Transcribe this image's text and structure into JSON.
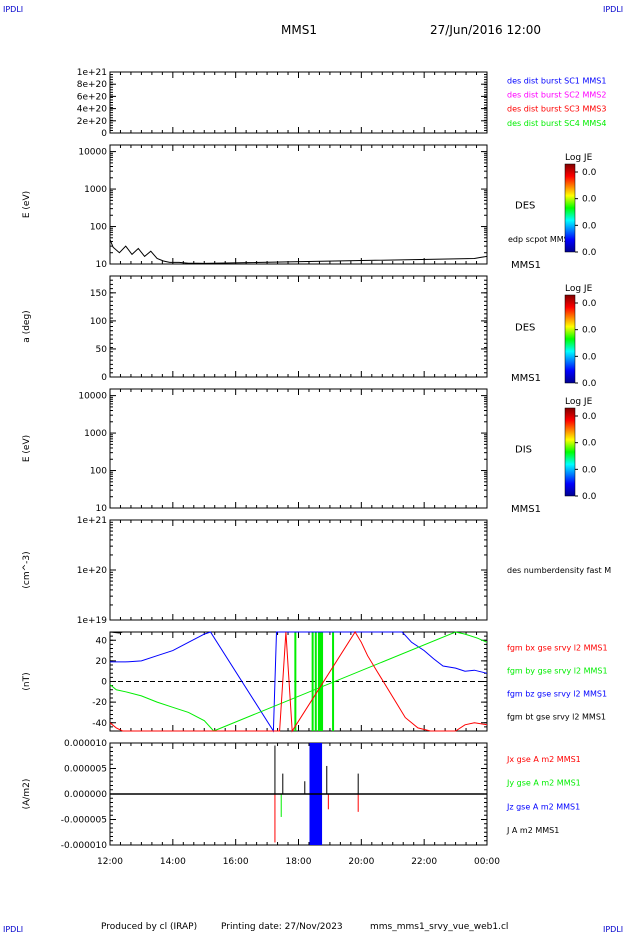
{
  "header": {
    "corner_label": "IPDLI",
    "spacecraft": "MMS1",
    "datetime": "27/Jun/2016 12:00"
  },
  "footer": {
    "produced_by": "Produced by cl (IRAP)",
    "printing_date": "Printing date: 27/Nov/2023",
    "filename": "mms_mms1_srvy_vue_web1.cl"
  },
  "colors": {
    "blue": "#0000ff",
    "magenta": "#ff00ff",
    "red": "#ff0000",
    "green": "#00ee00",
    "black": "#000000"
  },
  "chart_data": [
    {
      "type": "line",
      "id": "burst",
      "ylabel": "",
      "yticks": [
        "1e+21",
        "8e+20",
        "6e+20",
        "4e+20",
        "2e+20",
        "0"
      ],
      "ylim": [
        0,
        1e+21
      ],
      "legend": [
        {
          "name": "des dist burst SC1 MMS1",
          "color": "#0000ff"
        },
        {
          "name": "des dist burst SC2 MMS2",
          "color": "#ff00ff"
        },
        {
          "name": "des dist burst SC3 MMS3",
          "color": "#ff0000"
        },
        {
          "name": "des dist burst SC4 MMS4",
          "color": "#00ee00"
        }
      ],
      "reference_line": 0
    },
    {
      "type": "line",
      "id": "des_energy",
      "ylabel": "E (eV)",
      "yscale": "log",
      "yticks": [
        "10000",
        "1000",
        "100",
        "10"
      ],
      "ylim": [
        10,
        15000
      ],
      "side_label": "DES",
      "corner_label": "MMS1",
      "series_label": "edp scpot MMS1",
      "series": [
        {
          "name": "edp scpot MMS1",
          "x": [
            12.0,
            12.1,
            12.3,
            12.5,
            12.7,
            12.9,
            13.1,
            13.3,
            13.5,
            13.7,
            13.9,
            14.2,
            14.5,
            14.8,
            15.0,
            23.6,
            23.8,
            24.0
          ],
          "y": [
            45,
            28,
            20,
            30,
            18,
            26,
            16,
            22,
            14,
            12,
            11,
            11,
            10.5,
            10.5,
            10.4,
            14,
            15,
            16
          ]
        }
      ],
      "colorbar": {
        "title": "Log JE",
        "ticks": [
          "0.0",
          "0.0",
          "0.0",
          "0.0"
        ]
      }
    },
    {
      "type": "heatmap",
      "id": "des_pitch",
      "ylabel": "a (deg)",
      "yticks": [
        "150",
        "100",
        "50",
        "0"
      ],
      "ylim": [
        0,
        180
      ],
      "side_label": "DES",
      "corner_label": "MMS1",
      "colorbar": {
        "title": "Log JE",
        "ticks": [
          "0.0",
          "0.0",
          "0.0",
          "0.0"
        ]
      }
    },
    {
      "type": "heatmap",
      "id": "dis_energy",
      "ylabel": "E (eV)",
      "yscale": "log",
      "yticks": [
        "10000",
        "1000",
        "100",
        "10"
      ],
      "ylim": [
        10,
        15000
      ],
      "side_label": "DIS",
      "corner_label": "MMS1",
      "colorbar": {
        "title": "Log JE",
        "ticks": [
          "0.0",
          "0.0",
          "0.0",
          "0.0"
        ]
      }
    },
    {
      "type": "line",
      "id": "density",
      "ylabel": "(cm^-3)",
      "yscale": "log",
      "yticks": [
        "1e+21",
        "1e+20",
        "1e+19"
      ],
      "ylim": [
        1e+19,
        1e+21
      ],
      "legend": [
        {
          "name": "des numberdensity fast M",
          "color": "#000000"
        }
      ]
    },
    {
      "type": "line",
      "id": "fgm",
      "ylabel": "(nT)",
      "yticks": [
        "40",
        "20",
        "0",
        "-20",
        "-40"
      ],
      "ylim": [
        -48,
        48
      ],
      "reference_line": 0,
      "legend": [
        {
          "name": "fgm bx gse srvy l2 MMS1",
          "color": "#ff0000"
        },
        {
          "name": "fgm by gse srvy l2 MMS1",
          "color": "#00ee00"
        },
        {
          "name": "fgm bz gse srvy l2 MMS1",
          "color": "#0000ff"
        },
        {
          "name": "fgm bt gse srvy l2 MMS1",
          "color": "#000000"
        }
      ],
      "series": [
        {
          "name": "fgm bz gse srvy l2 MMS1",
          "color": "#0000ff",
          "x": [
            12.0,
            12.5,
            13.0,
            13.5,
            14.0,
            14.5,
            15.0,
            15.2,
            17.2,
            17.3,
            21.3,
            21.6,
            22.0,
            22.3,
            22.6,
            23.0,
            23.3,
            23.6,
            24.0
          ],
          "y": [
            19,
            19,
            20,
            25,
            30,
            38,
            46,
            48,
            -48,
            48,
            48,
            38,
            30,
            22,
            15,
            13,
            10,
            11,
            8
          ]
        },
        {
          "name": "fgm by gse srvy l2 MMS1",
          "color": "#00ee00",
          "x": [
            12.0,
            12.2,
            12.5,
            13.0,
            13.5,
            14.0,
            14.5,
            15.0,
            15.3,
            23.0,
            23.3,
            23.7,
            24.0
          ],
          "y": [
            -3,
            -8,
            -10,
            -14,
            -20,
            -25,
            -30,
            -38,
            -48,
            48,
            46,
            42,
            38
          ]
        },
        {
          "name": "fgm bx gse srvy l2 MMS1",
          "color": "#ff0000",
          "x": [
            12.0,
            12.2,
            12.4,
            17.4,
            17.6,
            17.8,
            19.8,
            20.0,
            20.2,
            20.5,
            20.8,
            21.1,
            21.4,
            21.8,
            22.2,
            23.0,
            23.3,
            23.6,
            24.0
          ],
          "y": [
            -40,
            -45,
            -48,
            -48,
            48,
            -48,
            48,
            38,
            25,
            10,
            -5,
            -20,
            -35,
            -45,
            -48,
            -48,
            -42,
            -40,
            -42
          ]
        },
        {
          "name": "fgm bt gse srvy l2 MMS1",
          "color": "#000000",
          "x": [
            12.0,
            12.3,
            12.4
          ],
          "y": [
            48,
            47,
            48
          ]
        }
      ],
      "green_bands": [
        17.9,
        18.45,
        18.55,
        18.65,
        18.7,
        18.75,
        19.1
      ]
    },
    {
      "type": "line",
      "id": "current",
      "ylabel": "(A/m2)",
      "yticks": [
        "0.000010",
        "0.000005",
        "0.000000",
        "-0.000005",
        "-0.000010"
      ],
      "ylim": [
        -1e-05,
        1e-05
      ],
      "xticks": [
        "12:00",
        "14:00",
        "16:00",
        "18:00",
        "20:00",
        "22:00",
        "00:00"
      ],
      "xlim": [
        12,
        24
      ],
      "legend": [
        {
          "name": "Jx gse A m2 MMS1",
          "color": "#ff0000"
        },
        {
          "name": "Jy gse A m2 MMS1",
          "color": "#00ee00"
        },
        {
          "name": "Jz gse A m2 MMS1",
          "color": "#0000ff"
        },
        {
          "name": "J A m2 MMS1",
          "color": "#000000"
        }
      ],
      "blue_block": [
        18.35,
        18.75
      ],
      "spikes": [
        {
          "x": 17.25,
          "y": 9.5e-06,
          "color": "#000000"
        },
        {
          "x": 17.25,
          "y": -9.5e-06,
          "color": "#ff0000"
        },
        {
          "x": 17.45,
          "y": -4.5e-06,
          "color": "#00ee00"
        },
        {
          "x": 17.5,
          "y": 4e-06,
          "color": "#000000"
        },
        {
          "x": 18.2,
          "y": 2.5e-06,
          "color": "#000000"
        },
        {
          "x": 18.9,
          "y": 5.5e-06,
          "color": "#000000"
        },
        {
          "x": 18.95,
          "y": -3e-06,
          "color": "#ff0000"
        },
        {
          "x": 19.9,
          "y": 4e-06,
          "color": "#000000"
        },
        {
          "x": 19.9,
          "y": -3.5e-06,
          "color": "#ff0000"
        }
      ]
    }
  ]
}
